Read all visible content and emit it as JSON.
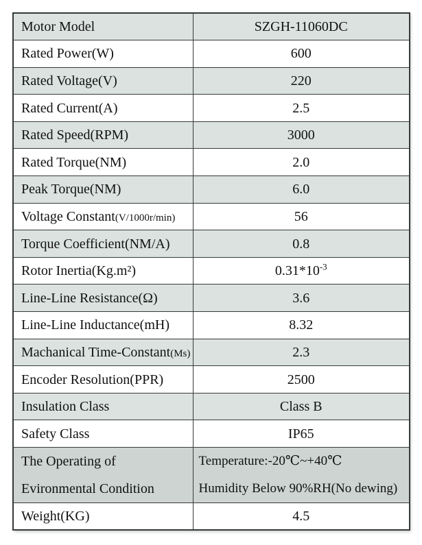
{
  "colors": {
    "row_shade": "#dbe2df",
    "operating_shade": "#cdd4d1",
    "border": "#353a39",
    "text": "#111111"
  },
  "table": {
    "rows": [
      {
        "label": "Motor Model",
        "value": "SZGH-11060DC"
      },
      {
        "label": "Rated Power(W)",
        "value": "600"
      },
      {
        "label": "Rated Voltage(V)",
        "value": "220"
      },
      {
        "label": "Rated Current(A)",
        "value": "2.5"
      },
      {
        "label": "Rated Speed(RPM)",
        "value": "3000"
      },
      {
        "label": "Rated Torque(NM)",
        "value": "2.0"
      },
      {
        "label": "Peak Torque(NM)",
        "value": "6.0"
      },
      {
        "label": "Voltage Constant",
        "label_small": "(V/1000r/min)",
        "value": "56"
      },
      {
        "label": "Torque Coefficient(NM/A)",
        "value": "0.8"
      },
      {
        "label": "Rotor Inertia(Kg.m²)",
        "value": "0.31*10",
        "value_sup": "-3"
      },
      {
        "label": "Line-Line Resistance(Ω)",
        "value": "3.6"
      },
      {
        "label": "Line-Line Inductance(mH)",
        "value": "8.32"
      },
      {
        "label": "Machanical Time-Constant",
        "label_small": "(Ms)",
        "value": "2.3"
      },
      {
        "label": "Encoder Resolution(PPR)",
        "value": "2500"
      },
      {
        "label": "Insulation Class",
        "value": "Class B"
      },
      {
        "label": "Safety Class",
        "value": "IP65"
      },
      {
        "label_line1": "The Operating of",
        "label_line2": "Evironmental Condition",
        "value_line1": "Temperature:-20℃~+40℃",
        "value_line2": "Humidity Below 90%RH(No dewing)"
      },
      {
        "label": "Weight(KG)",
        "value": "4.5"
      }
    ]
  }
}
